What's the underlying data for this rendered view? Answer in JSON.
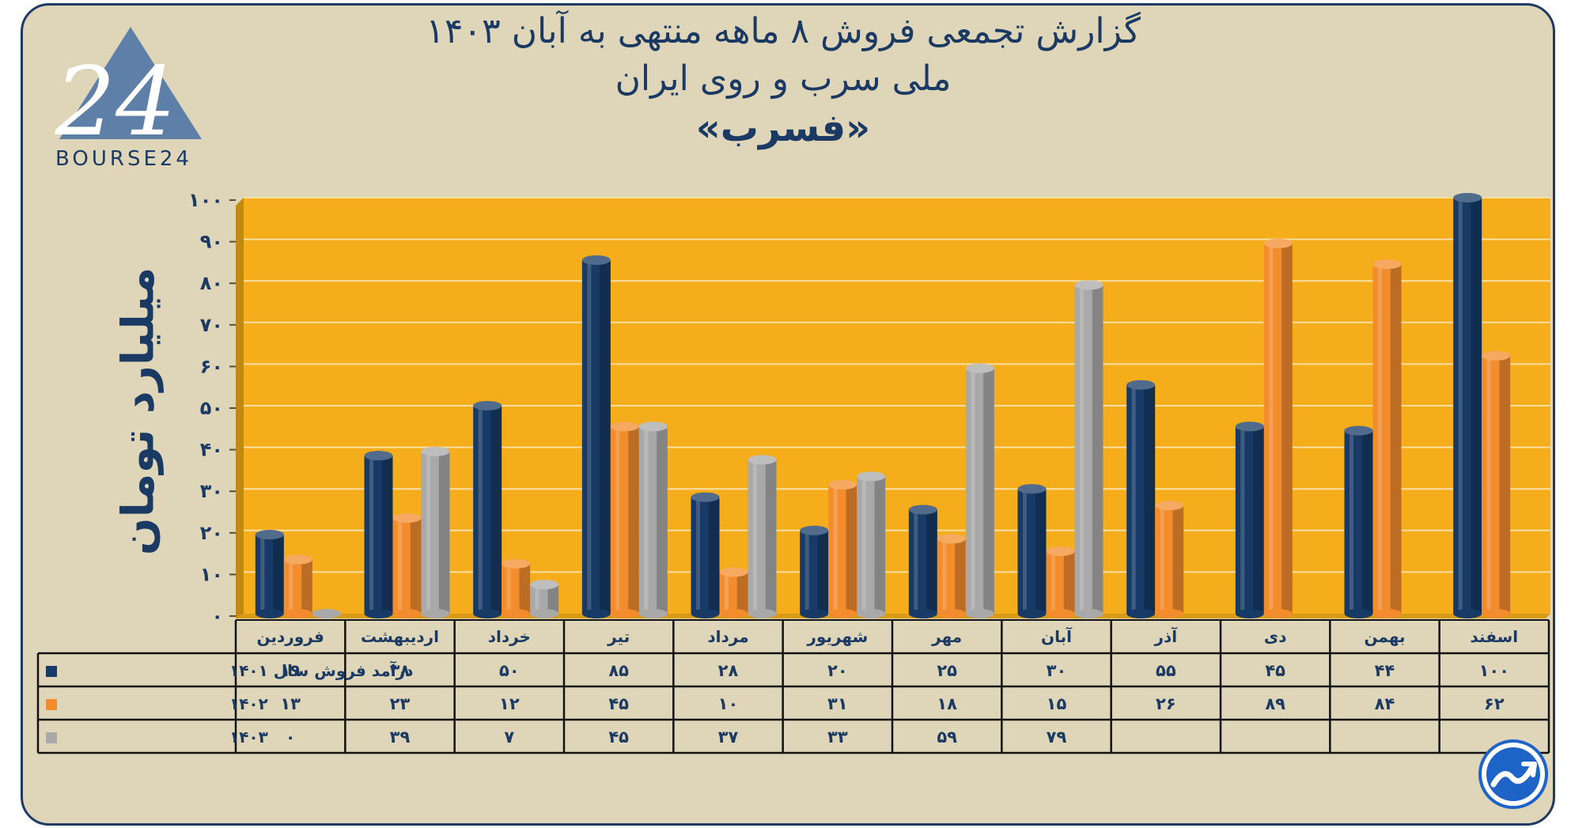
{
  "title": {
    "line1": "گزارش تجمعی فروش ۸ ماهه منتهی به آبان ۱۴۰۳",
    "line2": "ملی سرب و روی ایران",
    "line3": "«فسرب»"
  },
  "logo": {
    "text": "BOURSE24",
    "mark": "24"
  },
  "colors": {
    "background": "#dfd5b9",
    "plot": "#f5ad1c",
    "side_wall": "#c08a10",
    "navy": "#1b3a63",
    "series_1401": "#173a66",
    "series_1402": "#f28c2d",
    "series_1403": "#a9a9a9"
  },
  "icons": {
    "corner_badge": "trend-up-icon"
  },
  "chart_data": {
    "type": "bar",
    "ylabel": "میلیارد تومان",
    "ylim": [
      0,
      100
    ],
    "y_ticks": [
      0,
      10,
      20,
      30,
      40,
      50,
      60,
      70,
      80,
      90,
      100
    ],
    "y_tick_labels": [
      "۰",
      "۱۰",
      "۲۰",
      "۳۰",
      "۴۰",
      "۵۰",
      "۶۰",
      "۷۰",
      "۸۰",
      "۹۰",
      "۱۰۰"
    ],
    "grid": true,
    "categories": [
      "فروردین",
      "اردیبهشت",
      "خرداد",
      "تیر",
      "مرداد",
      "شهریور",
      "مهر",
      "آبان",
      "آذر",
      "دی",
      "بهمن",
      "اسفند"
    ],
    "series": [
      {
        "name": "درآمد فروش سال ۱۴۰۱",
        "color": "#173a66",
        "values": [
          19,
          38,
          50,
          85,
          28,
          20,
          25,
          30,
          55,
          45,
          44,
          100
        ],
        "labels": [
          "۱۹",
          "۳۸",
          "۵۰",
          "۸۵",
          "۲۸",
          "۲۰",
          "۲۵",
          "۳۰",
          "۵۵",
          "۴۵",
          "۴۴",
          "۱۰۰"
        ]
      },
      {
        "name": "۱۴۰۲",
        "color": "#f28c2d",
        "values": [
          13,
          23,
          12,
          45,
          10,
          31,
          18,
          15,
          26,
          89,
          84,
          62
        ],
        "labels": [
          "۱۳",
          "۲۳",
          "۱۲",
          "۴۵",
          "۱۰",
          "۳۱",
          "۱۸",
          "۱۵",
          "۲۶",
          "۸۹",
          "۸۴",
          "۶۲"
        ]
      },
      {
        "name": "۱۴۰۳",
        "color": "#a9a9a9",
        "values": [
          0,
          39,
          7,
          45,
          37,
          33,
          59,
          79,
          null,
          null,
          null,
          null
        ],
        "labels": [
          "۰",
          "۳۹",
          "۷",
          "۴۵",
          "۳۷",
          "۳۳",
          "۵۹",
          "۷۹",
          "",
          "",
          "",
          ""
        ]
      }
    ],
    "data_table": true
  }
}
